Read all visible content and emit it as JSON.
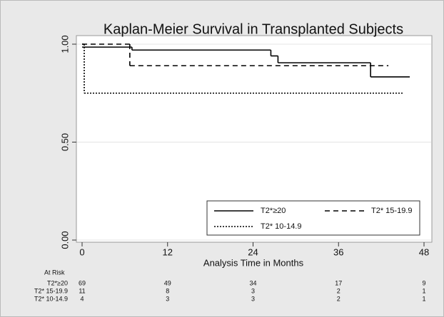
{
  "chart_data": {
    "type": "step",
    "title": "Kaplan-Meier Survival in Transplanted Subjects",
    "x_label": "Analysis Time in Months",
    "xlim": [
      0,
      48
    ],
    "xticks": [
      0,
      12,
      24,
      36,
      48
    ],
    "ylim": [
      0,
      1
    ],
    "yticks": [
      {
        "value": 0,
        "label": "0.00"
      },
      {
        "value": 0.5,
        "label": "0.50"
      },
      {
        "value": 1,
        "label": "1.00"
      }
    ],
    "grid": true,
    "legend": "bottom-right",
    "series": [
      {
        "name": "T2*≥20",
        "color": "#000000",
        "line_style": "solid",
        "x": [
          0,
          7,
          26.5,
          27.5,
          40.5,
          46
        ],
        "values": [
          0.985,
          0.97,
          0.94,
          0.905,
          0.833,
          0.833
        ]
      },
      {
        "name": "T2* 15-19.9",
        "color": "#000000",
        "line_style": "dashed",
        "x": [
          0,
          6.7,
          43
        ],
        "values": [
          1,
          0.89,
          0.89
        ]
      },
      {
        "name": "T2* 10-14.9",
        "color": "#000000",
        "line_style": "dotted",
        "x": [
          0,
          0.3,
          45
        ],
        "values": [
          1,
          0.75,
          0.75
        ]
      }
    ],
    "risk_table": {
      "title": "At Risk",
      "rows": [
        [
          69,
          49,
          34,
          17,
          9
        ],
        [
          11,
          8,
          3,
          2,
          1
        ],
        [
          4,
          3,
          3,
          2,
          1
        ]
      ]
    }
  }
}
